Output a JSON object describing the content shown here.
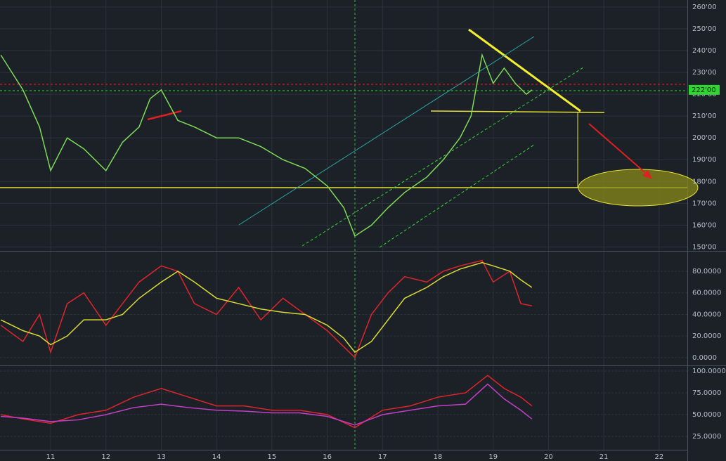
{
  "chart_data": [
    {
      "type": "line",
      "x": [
        10.1,
        10.5,
        10.8,
        11.0,
        11.3,
        11.6,
        12.0,
        12.3,
        12.6,
        12.8,
        13.0,
        13.3,
        13.6,
        14.0,
        14.4,
        14.8,
        15.2,
        15.6,
        16.0,
        16.3,
        16.5,
        16.8,
        17.1,
        17.4,
        17.8,
        18.1,
        18.4,
        18.6,
        18.8,
        19.0,
        19.2,
        19.4,
        19.6,
        19.7
      ],
      "series": [
        {
          "color": "#7ed957",
          "values": [
            238,
            222,
            205,
            185,
            200,
            195,
            185,
            198,
            205,
            218,
            222,
            208,
            205,
            200,
            200,
            196,
            190,
            186,
            178,
            168,
            155,
            160,
            168,
            175,
            182,
            190,
            200,
            210,
            238,
            225,
            232,
            225,
            220,
            222
          ]
        }
      ],
      "ylim": [
        148.2,
        263.2
      ],
      "yticks": [
        {
          "value": 150,
          "label": "150'00"
        },
        {
          "value": 160,
          "label": "160'00"
        },
        {
          "value": 170,
          "label": "170'00"
        },
        {
          "value": 180,
          "label": "180'00"
        },
        {
          "value": 190,
          "label": "190'00"
        },
        {
          "value": 200,
          "label": "200'00"
        },
        {
          "value": 210,
          "label": "210'00"
        },
        {
          "value": 220,
          "label": "220'00"
        },
        {
          "value": 230,
          "label": "230'00"
        },
        {
          "value": 240,
          "label": "240'00"
        },
        {
          "value": 250,
          "label": "250'00"
        },
        {
          "value": 260,
          "label": "260'00"
        }
      ],
      "last_price": {
        "value": 222,
        "label": "222'00"
      },
      "xlim": [
        10.085,
        22.51
      ],
      "grid": true
    },
    {
      "type": "line",
      "x": [
        10.1,
        10.5,
        10.8,
        11.0,
        11.3,
        11.6,
        12.0,
        12.3,
        12.6,
        13.0,
        13.3,
        13.6,
        14.0,
        14.4,
        14.8,
        15.2,
        15.6,
        16.0,
        16.3,
        16.5,
        16.8,
        17.1,
        17.4,
        17.8,
        18.1,
        18.4,
        18.8,
        19.0,
        19.3,
        19.5,
        19.7
      ],
      "series": [
        {
          "color": "#e0242c",
          "values": [
            30,
            15,
            40,
            5,
            50,
            60,
            30,
            50,
            70,
            85,
            80,
            50,
            40,
            65,
            35,
            55,
            40,
            25,
            10,
            0,
            40,
            60,
            75,
            70,
            80,
            85,
            90,
            70,
            80,
            50,
            48
          ]
        },
        {
          "color": "#d9d936",
          "values": [
            35,
            25,
            20,
            12,
            20,
            35,
            35,
            40,
            55,
            70,
            80,
            70,
            55,
            50,
            45,
            42,
            40,
            30,
            18,
            5,
            15,
            35,
            55,
            65,
            75,
            82,
            88,
            85,
            80,
            72,
            65
          ]
        }
      ],
      "ylim": [
        -7.2,
        98.2
      ],
      "yticks": [
        {
          "value": 0,
          "label": "0.0000"
        },
        {
          "value": 20,
          "label": "20.0000"
        },
        {
          "value": 40,
          "label": "40.0000"
        },
        {
          "value": 60,
          "label": "60.0000"
        },
        {
          "value": 80,
          "label": "80.0000"
        }
      ],
      "xlim": [
        10.085,
        22.51
      ],
      "grid": true
    },
    {
      "type": "line",
      "x": [
        10.1,
        10.5,
        11.0,
        11.5,
        12.0,
        12.5,
        13.0,
        13.5,
        14.0,
        14.5,
        15.0,
        15.5,
        16.0,
        16.5,
        17.0,
        17.5,
        18.0,
        18.5,
        18.9,
        19.2,
        19.5,
        19.7
      ],
      "series": [
        {
          "color": "#e0242c",
          "values": [
            50,
            45,
            40,
            50,
            55,
            70,
            80,
            70,
            60,
            60,
            55,
            55,
            50,
            35,
            55,
            60,
            70,
            75,
            95,
            80,
            70,
            60
          ]
        },
        {
          "color": "#c23fc7",
          "values": [
            48,
            46,
            42,
            44,
            50,
            58,
            62,
            58,
            55,
            54,
            52,
            52,
            48,
            38,
            50,
            55,
            60,
            62,
            85,
            68,
            55,
            45
          ]
        }
      ],
      "ylim": [
        9.7,
        105.6
      ],
      "yticks": [
        {
          "value": 25,
          "label": "25.0000"
        },
        {
          "value": 50,
          "label": "50.0000"
        },
        {
          "value": 75,
          "label": "75.0000"
        },
        {
          "value": 100,
          "label": "100.0000"
        }
      ],
      "xticks": [
        11,
        12,
        13,
        14,
        15,
        16,
        17,
        18,
        19,
        20,
        21,
        22
      ],
      "xlim": [
        10.085,
        22.51
      ],
      "grid": true
    }
  ]
}
